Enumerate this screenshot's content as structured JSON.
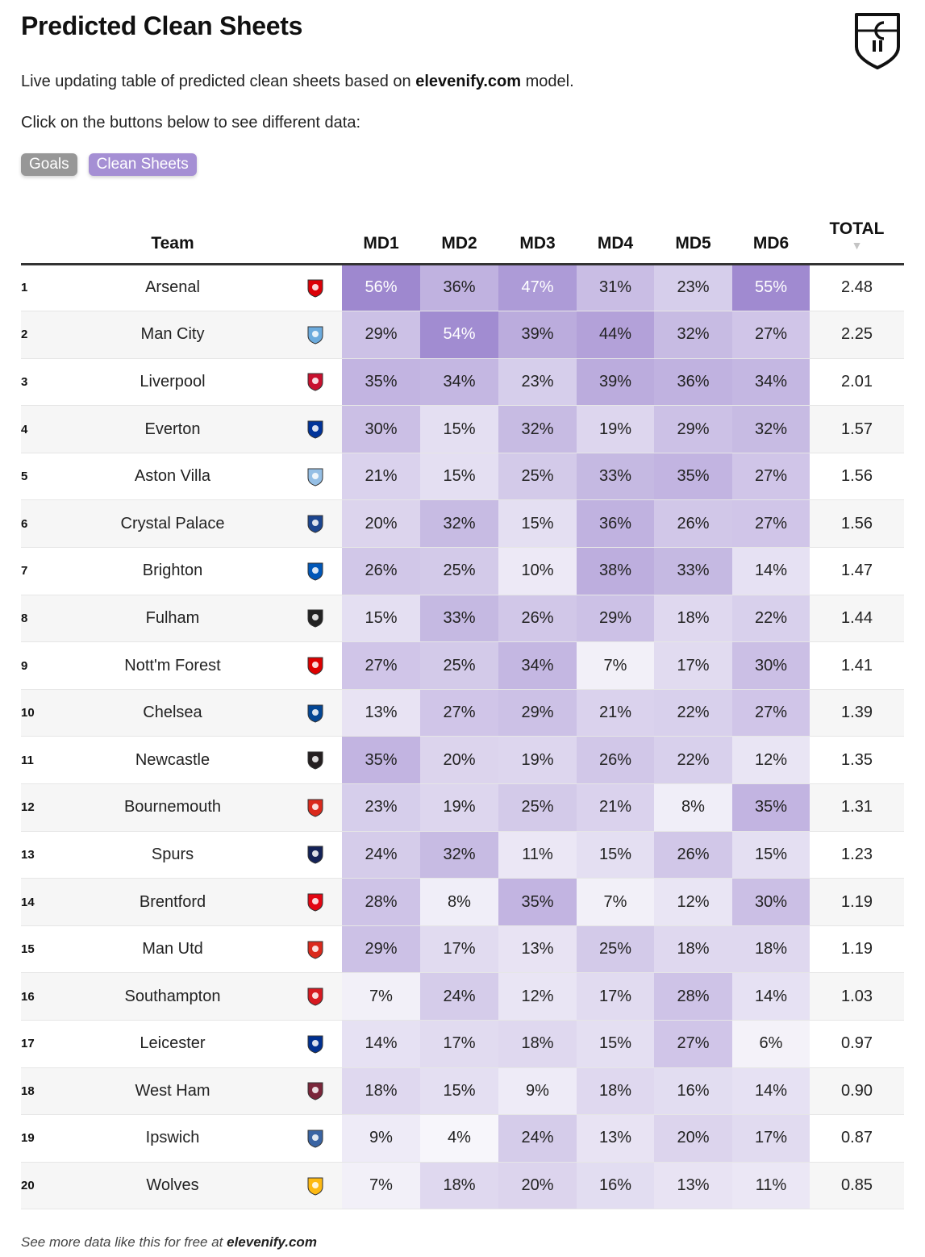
{
  "header": {
    "title": "Predicted Clean Sheets",
    "subtitle_pre": "Live updating table of predicted clean sheets based on ",
    "subtitle_brand": "elevenify.com",
    "subtitle_post": " model.",
    "instruction": "Click on the buttons below to see different data:"
  },
  "buttons": {
    "goals": "Goals",
    "clean_sheets": "Clean Sheets"
  },
  "table": {
    "columns": {
      "team": "Team",
      "md1": "MD1",
      "md2": "MD2",
      "md3": "MD3",
      "md4": "MD4",
      "md5": "MD5",
      "md6": "MD6",
      "total": "TOTAL",
      "sort_arrow": "▼"
    },
    "rows": [
      {
        "rank": "1",
        "team": "Arsenal",
        "badge": "arsenal-badge-icon",
        "color": "#db0007",
        "md": [
          56,
          36,
          47,
          31,
          23,
          55
        ],
        "total": "2.48"
      },
      {
        "rank": "2",
        "team": "Man City",
        "badge": "man-city-badge-icon",
        "color": "#6cabdd",
        "md": [
          29,
          54,
          39,
          44,
          32,
          27
        ],
        "total": "2.25"
      },
      {
        "rank": "3",
        "team": "Liverpool",
        "badge": "liverpool-badge-icon",
        "color": "#c8102e",
        "md": [
          35,
          34,
          23,
          39,
          36,
          34
        ],
        "total": "2.01"
      },
      {
        "rank": "4",
        "team": "Everton",
        "badge": "everton-badge-icon",
        "color": "#003399",
        "md": [
          30,
          15,
          32,
          19,
          29,
          32
        ],
        "total": "1.57"
      },
      {
        "rank": "5",
        "team": "Aston Villa",
        "badge": "aston-villa-badge-icon",
        "color": "#95bfe5",
        "md": [
          21,
          15,
          25,
          33,
          35,
          27
        ],
        "total": "1.56"
      },
      {
        "rank": "6",
        "team": "Crystal Palace",
        "badge": "crystal-palace-badge-icon",
        "color": "#1b458f",
        "md": [
          20,
          32,
          15,
          36,
          26,
          27
        ],
        "total": "1.56"
      },
      {
        "rank": "7",
        "team": "Brighton",
        "badge": "brighton-badge-icon",
        "color": "#0057b8",
        "md": [
          26,
          25,
          10,
          38,
          33,
          14
        ],
        "total": "1.47"
      },
      {
        "rank": "8",
        "team": "Fulham",
        "badge": "fulham-badge-icon",
        "color": "#222222",
        "md": [
          15,
          33,
          26,
          29,
          18,
          22
        ],
        "total": "1.44"
      },
      {
        "rank": "9",
        "team": "Nott'm Forest",
        "badge": "nottm-forest-badge-icon",
        "color": "#dd0000",
        "md": [
          27,
          25,
          34,
          7,
          17,
          30
        ],
        "total": "1.41"
      },
      {
        "rank": "10",
        "team": "Chelsea",
        "badge": "chelsea-badge-icon",
        "color": "#034694",
        "md": [
          13,
          27,
          29,
          21,
          22,
          27
        ],
        "total": "1.39"
      },
      {
        "rank": "11",
        "team": "Newcastle",
        "badge": "newcastle-badge-icon",
        "color": "#241f20",
        "md": [
          35,
          20,
          19,
          26,
          22,
          12
        ],
        "total": "1.35"
      },
      {
        "rank": "12",
        "team": "Bournemouth",
        "badge": "bournemouth-badge-icon",
        "color": "#da291c",
        "md": [
          23,
          19,
          25,
          21,
          8,
          35
        ],
        "total": "1.31"
      },
      {
        "rank": "13",
        "team": "Spurs",
        "badge": "spurs-badge-icon",
        "color": "#132257",
        "md": [
          24,
          32,
          11,
          15,
          26,
          15
        ],
        "total": "1.23"
      },
      {
        "rank": "14",
        "team": "Brentford",
        "badge": "brentford-badge-icon",
        "color": "#e30613",
        "md": [
          28,
          8,
          35,
          7,
          12,
          30
        ],
        "total": "1.19"
      },
      {
        "rank": "15",
        "team": "Man Utd",
        "badge": "man-utd-badge-icon",
        "color": "#da291c",
        "md": [
          29,
          17,
          13,
          25,
          18,
          18
        ],
        "total": "1.19"
      },
      {
        "rank": "16",
        "team": "Southampton",
        "badge": "southampton-badge-icon",
        "color": "#d71920",
        "md": [
          7,
          24,
          12,
          17,
          28,
          14
        ],
        "total": "1.03"
      },
      {
        "rank": "17",
        "team": "Leicester",
        "badge": "leicester-badge-icon",
        "color": "#003090",
        "md": [
          14,
          17,
          18,
          15,
          27,
          6
        ],
        "total": "0.97"
      },
      {
        "rank": "18",
        "team": "West Ham",
        "badge": "west-ham-badge-icon",
        "color": "#7a263a",
        "md": [
          18,
          15,
          9,
          18,
          16,
          14
        ],
        "total": "0.90"
      },
      {
        "rank": "19",
        "team": "Ipswich",
        "badge": "ipswich-badge-icon",
        "color": "#3a64a3",
        "md": [
          9,
          4,
          24,
          13,
          20,
          17
        ],
        "total": "0.87"
      },
      {
        "rank": "20",
        "team": "Wolves",
        "badge": "wolves-badge-icon",
        "color": "#fdb913",
        "md": [
          7,
          18,
          20,
          16,
          13,
          11
        ],
        "total": "0.85"
      }
    ]
  },
  "footer": {
    "pre": "See more data like this for free at ",
    "brand": "elevenify.com"
  },
  "colors": {
    "heat_max": "#9e88cf",
    "heat_min": "#f7f6fb",
    "button_goals": "#979797",
    "button_clean_sheets": "#a58fd4"
  }
}
